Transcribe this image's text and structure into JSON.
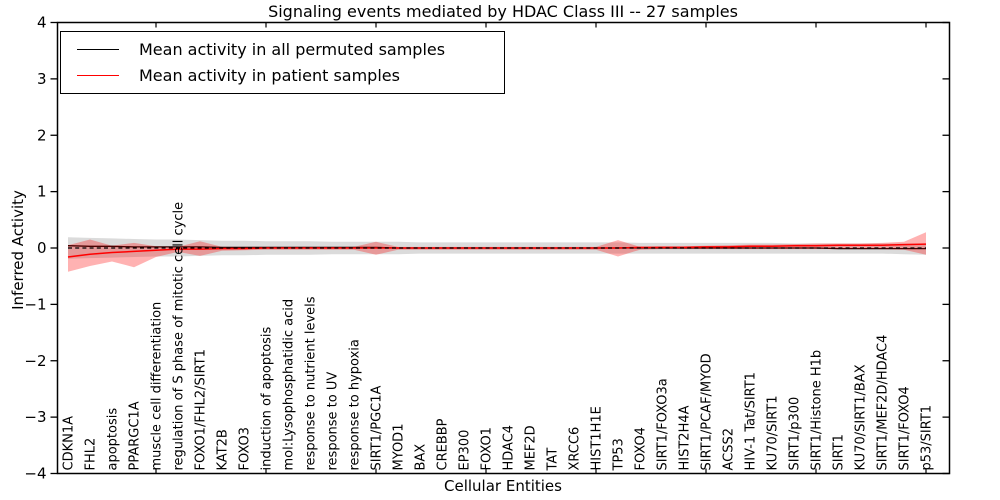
{
  "chart_data": {
    "type": "line",
    "title": "Signaling events mediated by HDAC Class III -- 27 samples",
    "xlabel": "Cellular Entities",
    "ylabel": "Inferred Activity",
    "ylim": [
      -4,
      4
    ],
    "yticks": [
      -4,
      -3,
      -2,
      -1,
      0,
      1,
      2,
      3,
      4
    ],
    "grid": false,
    "legend_position": "upper left",
    "categories": [
      "CDKN1A",
      "FHL2",
      "apoptosis",
      "PPARGC1A",
      "muscle cell differentiation",
      "regulation of S phase of mitotic cell cycle",
      "FOXO1/FHL2/SIRT1",
      "KAT2B",
      "FOXO3",
      "induction of apoptosis",
      "mol:Lysophosphatidic acid",
      "response to nutrient levels",
      "response to UV",
      "response to hypoxia",
      "SIRT1/PGC1A",
      "MYOD1",
      "BAX",
      "CREBBP",
      "EP300",
      "FOXO1",
      "HDAC4",
      "MEF2D",
      "TAT",
      "XRCC6",
      "HIST1H1E",
      "TP53",
      "FOXO4",
      "SIRT1/FOXO3a",
      "HIST2H4A",
      "SIRT1/PCAF/MYOD",
      "ACSS2",
      "HIV-1 Tat/SIRT1",
      "KU70/SIRT1",
      "SIRT1/p300",
      "SIRT1/Histone H1b",
      "SIRT1",
      "KU70/SIRT1/BAX",
      "SIRT1/MEF2D/HDAC4",
      "SIRT1/FOXO4",
      "p53/SIRT1"
    ],
    "series": [
      {
        "name": "Mean activity in all permuted samples",
        "color": "#000000",
        "band_color": "#999999",
        "band_opacity": 0.35,
        "values": [
          0.04,
          0.03,
          0.03,
          0.02,
          0.02,
          0.02,
          0.02,
          0.01,
          0.01,
          0.01,
          0.01,
          0.01,
          0.01,
          0.01,
          0.01,
          0.0,
          0.0,
          0.0,
          0.0,
          0.0,
          0.0,
          0.0,
          0.0,
          0.0,
          0.0,
          0.0,
          0.0,
          0.0,
          0.0,
          0.0,
          0.0,
          0.0,
          0.0,
          0.0,
          0.0,
          -0.01,
          -0.01,
          -0.01,
          -0.01,
          -0.01
        ],
        "band_upper": [
          0.19,
          0.18,
          0.17,
          0.16,
          0.15,
          0.15,
          0.14,
          0.13,
          0.13,
          0.12,
          0.12,
          0.12,
          0.11,
          0.11,
          0.11,
          0.11,
          0.1,
          0.1,
          0.1,
          0.1,
          0.1,
          0.1,
          0.1,
          0.1,
          0.1,
          0.1,
          0.09,
          0.09,
          0.09,
          0.09,
          0.09,
          0.09,
          0.09,
          0.08,
          0.08,
          0.08,
          0.08,
          0.08,
          0.08,
          0.08
        ],
        "band_lower": [
          -0.19,
          -0.18,
          -0.17,
          -0.16,
          -0.15,
          -0.15,
          -0.14,
          -0.13,
          -0.13,
          -0.12,
          -0.12,
          -0.12,
          -0.11,
          -0.11,
          -0.11,
          -0.11,
          -0.1,
          -0.1,
          -0.1,
          -0.1,
          -0.1,
          -0.1,
          -0.1,
          -0.1,
          -0.1,
          -0.1,
          -0.1,
          -0.1,
          -0.1,
          -0.1,
          -0.1,
          -0.1,
          -0.1,
          -0.1,
          -0.1,
          -0.1,
          -0.1,
          -0.1,
          -0.11,
          -0.12
        ]
      },
      {
        "name": "Mean activity in patient samples",
        "color": "#ff0000",
        "band_color": "#ff0000",
        "band_opacity": 0.3,
        "values": [
          -0.16,
          -0.11,
          -0.08,
          -0.06,
          -0.04,
          -0.02,
          -0.02,
          -0.01,
          -0.01,
          0.0,
          0.0,
          0.0,
          0.0,
          0.0,
          0.0,
          0.0,
          0.0,
          0.0,
          0.0,
          0.0,
          0.0,
          0.0,
          0.0,
          0.0,
          0.0,
          0.0,
          0.01,
          0.01,
          0.01,
          0.02,
          0.02,
          0.03,
          0.03,
          0.04,
          0.04,
          0.05,
          0.05,
          0.05,
          0.06,
          0.07
        ],
        "band_upper": [
          0.05,
          0.15,
          0.04,
          0.09,
          0.03,
          0.02,
          0.12,
          0.02,
          0.02,
          0.02,
          0.02,
          0.02,
          0.02,
          0.02,
          0.11,
          0.02,
          0.02,
          0.02,
          0.02,
          0.02,
          0.02,
          0.02,
          0.02,
          0.02,
          0.02,
          0.14,
          0.02,
          0.03,
          0.03,
          0.04,
          0.05,
          0.06,
          0.06,
          0.07,
          0.08,
          0.08,
          0.08,
          0.09,
          0.11,
          0.28
        ],
        "band_lower": [
          -0.42,
          -0.32,
          -0.24,
          -0.34,
          -0.16,
          -0.07,
          -0.14,
          -0.05,
          -0.04,
          -0.03,
          -0.03,
          -0.03,
          -0.03,
          -0.03,
          -0.12,
          -0.03,
          -0.03,
          -0.03,
          -0.03,
          -0.03,
          -0.03,
          -0.03,
          -0.03,
          -0.03,
          -0.03,
          -0.15,
          -0.03,
          -0.02,
          -0.02,
          -0.02,
          -0.02,
          -0.02,
          -0.02,
          -0.02,
          -0.02,
          -0.02,
          -0.02,
          -0.02,
          -0.03,
          -0.12
        ]
      }
    ],
    "zero_line": {
      "y": 0,
      "style": "dashed",
      "color": "#000000"
    }
  }
}
